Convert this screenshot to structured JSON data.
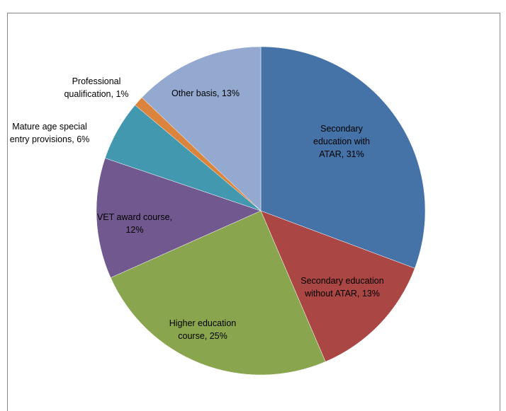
{
  "chart_data": {
    "type": "pie",
    "labels": [
      "Secondary education with ATAR, 31%",
      "Secondary education without ATAR, 13%",
      "Higher education course, 25%",
      "VET award course, 12%",
      "Mature age special entry provisions, 6%",
      "Professional qualification, 1%",
      "Other basis, 13%"
    ],
    "values": [
      31,
      13,
      25,
      12,
      6,
      1,
      13
    ],
    "colors": [
      "#4572a7",
      "#aa4643",
      "#89a54e",
      "#71588f",
      "#4198af",
      "#db843d",
      "#93a9cf"
    ]
  }
}
